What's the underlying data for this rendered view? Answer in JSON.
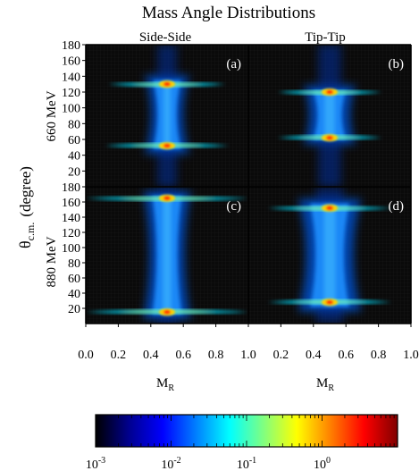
{
  "chart_data": {
    "type": "heatmap",
    "title": "Mass Angle Distributions",
    "column_titles": [
      "Side-Side",
      "Tip-Tip"
    ],
    "row_labels": [
      "660 MeV",
      "880 MeV"
    ],
    "ylabel_main": "θ",
    "ylabel_sub": "c.m.",
    "ylabel_unit": "(degree)",
    "xlabel_main": "M",
    "xlabel_sub": "R",
    "xlim": [
      0.0,
      1.0
    ],
    "ylim": [
      0,
      180
    ],
    "x_ticks": [
      "0.0",
      "0.2",
      "0.4",
      "0.6",
      "0.8",
      "1.0"
    ],
    "y_ticks_top": [
      "20",
      "40",
      "60",
      "80",
      "100",
      "120",
      "140",
      "160",
      "180"
    ],
    "y_ticks_bottom": [
      "20",
      "40",
      "60",
      "80",
      "100",
      "120",
      "140",
      "160",
      "180"
    ],
    "panels": [
      {
        "label": "(a)",
        "row": 0,
        "col": 0,
        "peaks": [
          {
            "theta": 130,
            "width": 0.36
          },
          {
            "theta": 52,
            "width": 0.38
          }
        ],
        "core_halfwidth": 0.085,
        "waist_halfwidth": 0.06,
        "band_theta": [
          48,
          135
        ]
      },
      {
        "label": "(b)",
        "row": 0,
        "col": 1,
        "peaks": [
          {
            "theta": 120,
            "width": 0.32
          },
          {
            "theta": 62,
            "width": 0.32
          }
        ],
        "core_halfwidth": 0.1,
        "waist_halfwidth": 0.09,
        "band_theta": [
          60,
          122
        ]
      },
      {
        "label": "(c)",
        "row": 1,
        "col": 0,
        "peaks": [
          {
            "theta": 165,
            "width": 0.5
          },
          {
            "theta": 15,
            "width": 0.5
          }
        ],
        "core_halfwidth": 0.09,
        "waist_halfwidth": 0.07,
        "band_theta": [
          12,
          168
        ]
      },
      {
        "label": "(d)",
        "row": 1,
        "col": 1,
        "peaks": [
          {
            "theta": 152,
            "width": 0.38
          },
          {
            "theta": 28,
            "width": 0.38
          }
        ],
        "core_halfwidth": 0.12,
        "waist_halfwidth": 0.1,
        "band_theta": [
          22,
          158
        ]
      }
    ],
    "colorbar": {
      "scale": "log",
      "range": [
        0.001,
        10
      ],
      "ticks": [
        {
          "base": "10",
          "exp": "-3"
        },
        {
          "base": "10",
          "exp": "-2"
        },
        {
          "base": "10",
          "exp": "-1"
        },
        {
          "base": "10",
          "exp": "0"
        }
      ],
      "colormap": [
        "#000000",
        "#00008f",
        "#0000ff",
        "#0080ff",
        "#00ffff",
        "#80ff80",
        "#ffff00",
        "#ff8000",
        "#ff0000",
        "#800000"
      ]
    }
  }
}
